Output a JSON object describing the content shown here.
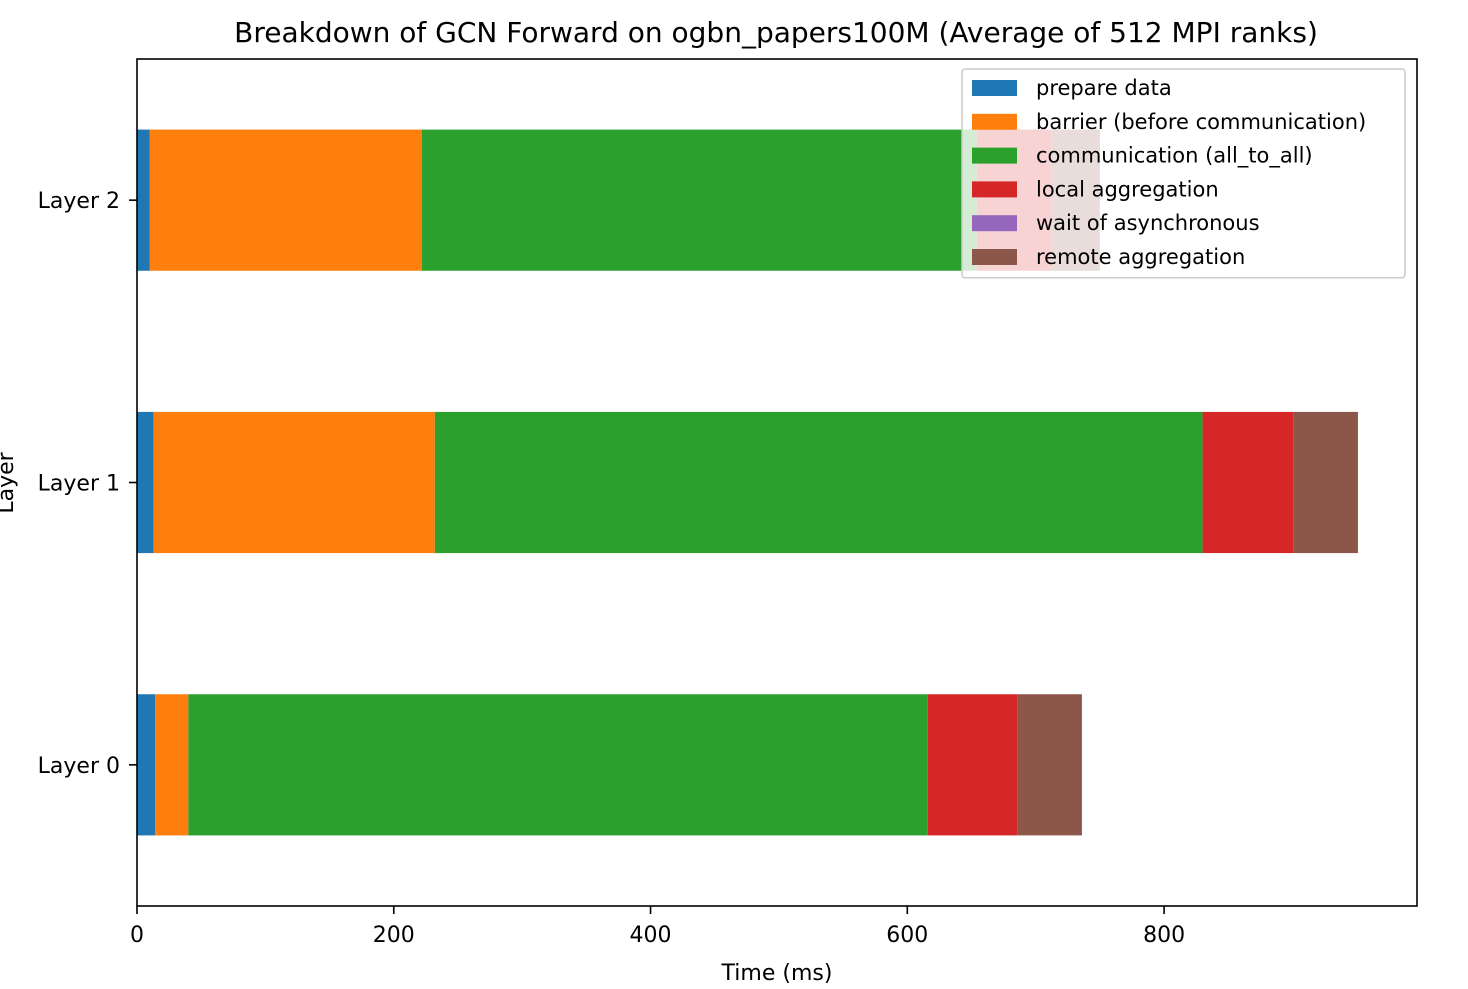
{
  "chart_data": {
    "type": "bar",
    "orientation": "horizontal",
    "stacked": true,
    "title": "Breakdown of GCN Forward on ogbn_papers100M (Average of 512 MPI ranks)",
    "xlabel": "Time (ms)",
    "ylabel": "Layer",
    "xlim": [
      0,
      997
    ],
    "xticks": [
      0,
      200,
      400,
      600,
      800
    ],
    "categories": [
      "Layer 0",
      "Layer 1",
      "Layer 2"
    ],
    "grid": false,
    "legend_position": "top-right",
    "series": [
      {
        "name": "prepare data",
        "color": "#1f77b4",
        "values": [
          14,
          13,
          10
        ]
      },
      {
        "name": "barrier (before communication)",
        "color": "#ff7f0e",
        "values": [
          26,
          219,
          212
        ]
      },
      {
        "name": "communication (all_to_all)",
        "color": "#2ca02c",
        "values": [
          576,
          598,
          432
        ]
      },
      {
        "name": "local aggregation",
        "color": "#d62728",
        "values": [
          70,
          71,
          58
        ]
      },
      {
        "name": "wait of asynchronous",
        "color": "#9467bd",
        "values": [
          0,
          0,
          0
        ]
      },
      {
        "name": "remote aggregation",
        "color": "#8c564b",
        "values": [
          50,
          50,
          38
        ]
      }
    ]
  }
}
